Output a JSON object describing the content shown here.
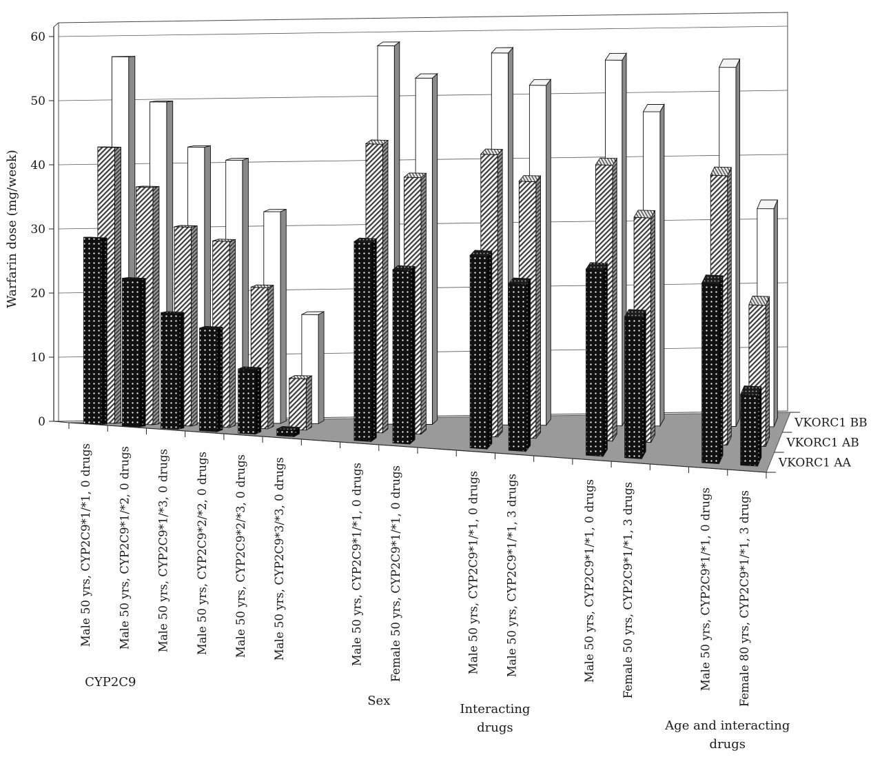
{
  "chart_data": {
    "type": "bar",
    "subtype": "3d-grouped-bar",
    "title": "",
    "ylabel": "Warfarin dose (mg/week)",
    "xlabel": "",
    "ylim": [
      0,
      60
    ],
    "yticks": [
      0,
      10,
      20,
      30,
      40,
      50,
      60
    ],
    "grid": true,
    "categories": [
      "Male 50 yrs, CYP2C9*1/*1, 0 drugs",
      "Male 50 yrs, CYP2C9*1/*2, 0 drugs",
      "Male 50 yrs, CYP2C9*1/*3, 0 drugs",
      "Male 50 yrs, CYP2C9*2/*2, 0 drugs",
      "Male 50 yrs, CYP2C9*2/*3, 0 drugs",
      "Male 50 yrs, CYP2C9*3/*3, 0 drugs",
      "Male 50 yrs, CYP2C9*1/*1, 0 drugs",
      "Female 50 yrs, CYP2C9*1/*1, 0 drugs",
      "Male 50 yrs, CYP2C9*1/*1, 0 drugs",
      "Male 50 yrs, CYP2C9*1/*1, 3 drugs",
      "Male 50 yrs, CYP2C9*1/*1, 0 drugs",
      "Female 50 yrs, CYP2C9*1/*1, 3 drugs",
      "Male 50 yrs, CYP2C9*1/*1, 0 drugs",
      "Female 80 yrs, CYP2C9*1/*1, 3 drugs"
    ],
    "category_slots": [
      0,
      1,
      2,
      3,
      4,
      5,
      7,
      8,
      10,
      11,
      13,
      14,
      16,
      17
    ],
    "groups": [
      {
        "label": "CYP2C9",
        "lines": [
          "CYP2C9"
        ],
        "slots": [
          0,
          5
        ]
      },
      {
        "label": "Sex",
        "lines": [
          "Sex"
        ],
        "slots": [
          7,
          8
        ]
      },
      {
        "label": "Interacting drugs",
        "lines": [
          "Interacting",
          "drugs"
        ],
        "slots": [
          10,
          11
        ]
      },
      {
        "label": "Age and interacting drugs",
        "lines": [
          "Age and interacting",
          "drugs"
        ],
        "slots": [
          16,
          17
        ]
      }
    ],
    "series": [
      {
        "name": "VKORC1 AA",
        "values": [
          29,
          23,
          18,
          16,
          10,
          1,
          31,
          27,
          30,
          26,
          29,
          22,
          28,
          11
        ],
        "fill": "#111111",
        "pattern": "dots"
      },
      {
        "name": "VKORC1 AB",
        "values": [
          43,
          37,
          31,
          29,
          22,
          8,
          45,
          40,
          44,
          40,
          43,
          35,
          42,
          22
        ],
        "fill": "#f2f2f2",
        "pattern": "diagonal"
      },
      {
        "name": "VKORC1 BB",
        "values": [
          57,
          50,
          43,
          41,
          33,
          17,
          59,
          54,
          58,
          53,
          57,
          49,
          56,
          34
        ],
        "fill": "#ffffff",
        "pattern": "none"
      }
    ]
  },
  "colors": {
    "floor": "#9a9a9a",
    "side_dark": "#8a8a8a",
    "grid": "#555555",
    "text": "#1a1a1a"
  }
}
